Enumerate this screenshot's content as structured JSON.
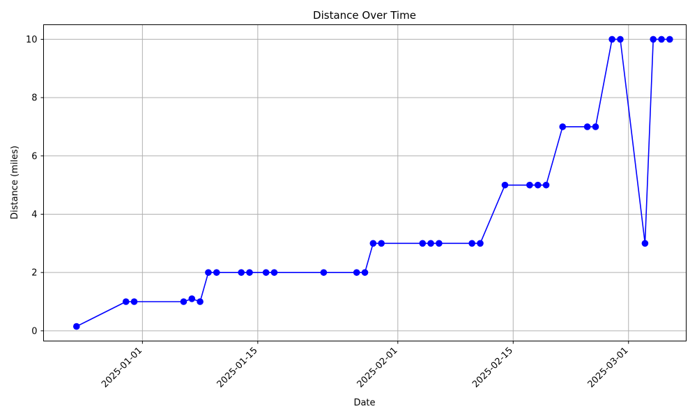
{
  "chart_data": {
    "type": "line",
    "title": "Distance Over Time",
    "xlabel": "Date",
    "ylabel": "Distance (miles)",
    "x_ticks": [
      "2025-01-01",
      "2025-01-15",
      "2025-02-01",
      "2025-02-15",
      "2025-03-01"
    ],
    "y_ticks": [
      0,
      2,
      4,
      6,
      8,
      10
    ],
    "xlim": [
      "2024-12-20",
      "2025-03-08"
    ],
    "ylim": [
      -0.35,
      10.5
    ],
    "grid": true,
    "marker": "circle",
    "color": "#0000ff",
    "series": [
      {
        "points": [
          {
            "x": "2024-12-24",
            "y": 0.15
          },
          {
            "x": "2024-12-30",
            "y": 1.0
          },
          {
            "x": "2024-12-31",
            "y": 1.0
          },
          {
            "x": "2025-01-06",
            "y": 1.0
          },
          {
            "x": "2025-01-07",
            "y": 1.1
          },
          {
            "x": "2025-01-08",
            "y": 1.0
          },
          {
            "x": "2025-01-09",
            "y": 2.0
          },
          {
            "x": "2025-01-10",
            "y": 2.0
          },
          {
            "x": "2025-01-13",
            "y": 2.0
          },
          {
            "x": "2025-01-14",
            "y": 2.0
          },
          {
            "x": "2025-01-16",
            "y": 2.0
          },
          {
            "x": "2025-01-17",
            "y": 2.0
          },
          {
            "x": "2025-01-23",
            "y": 2.0
          },
          {
            "x": "2025-01-27",
            "y": 2.0
          },
          {
            "x": "2025-01-28",
            "y": 2.0
          },
          {
            "x": "2025-01-29",
            "y": 3.0
          },
          {
            "x": "2025-01-30",
            "y": 3.0
          },
          {
            "x": "2025-02-04",
            "y": 3.0
          },
          {
            "x": "2025-02-05",
            "y": 3.0
          },
          {
            "x": "2025-02-06",
            "y": 3.0
          },
          {
            "x": "2025-02-10",
            "y": 3.0
          },
          {
            "x": "2025-02-11",
            "y": 3.0
          },
          {
            "x": "2025-02-14",
            "y": 5.0
          },
          {
            "x": "2025-02-17",
            "y": 5.0
          },
          {
            "x": "2025-02-18",
            "y": 5.0
          },
          {
            "x": "2025-02-19",
            "y": 5.0
          },
          {
            "x": "2025-02-21",
            "y": 7.0
          },
          {
            "x": "2025-02-24",
            "y": 7.0
          },
          {
            "x": "2025-02-25",
            "y": 7.0
          },
          {
            "x": "2025-02-27",
            "y": 10.0
          },
          {
            "x": "2025-02-28",
            "y": 10.0
          },
          {
            "x": "2025-03-03",
            "y": 3.0
          },
          {
            "x": "2025-03-04",
            "y": 10.0
          },
          {
            "x": "2025-03-05",
            "y": 10.0
          },
          {
            "x": "2025-03-06",
            "y": 10.0
          }
        ]
      }
    ]
  }
}
